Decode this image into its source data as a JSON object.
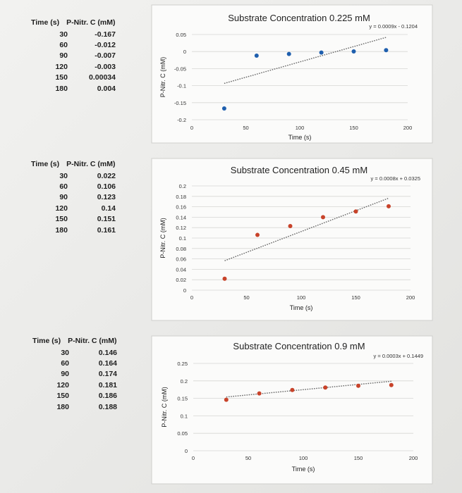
{
  "tables": [
    {
      "headers": [
        "Time (s)",
        "P-Nitr. C (mM)"
      ],
      "rows": [
        [
          "30",
          "-0.167"
        ],
        [
          "60",
          "-0.012"
        ],
        [
          "90",
          "-0.007"
        ],
        [
          "120",
          "-0.003"
        ],
        [
          "150",
          "0.00034"
        ],
        [
          "180",
          "0.004"
        ]
      ]
    },
    {
      "headers": [
        "Time (s)",
        "P-Nitr. C (mM)"
      ],
      "rows": [
        [
          "30",
          "0.022"
        ],
        [
          "60",
          "0.106"
        ],
        [
          "90",
          "0.123"
        ],
        [
          "120",
          "0.14"
        ],
        [
          "150",
          "0.151"
        ],
        [
          "180",
          "0.161"
        ]
      ]
    },
    {
      "headers": [
        "Time (s)",
        "P-Nitr. C (mM)"
      ],
      "rows": [
        [
          "30",
          "0.146"
        ],
        [
          "60",
          "0.164"
        ],
        [
          "90",
          "0.174"
        ],
        [
          "120",
          "0.181"
        ],
        [
          "150",
          "0.186"
        ],
        [
          "180",
          "0.188"
        ]
      ]
    }
  ],
  "chart_data": [
    {
      "type": "scatter",
      "title": "Substrate Concentration 0.225 mM",
      "xlabel": "Time (s)",
      "ylabel": "P-Nitr. C (mM)",
      "xlim": [
        0,
        200
      ],
      "ylim": [
        -0.2,
        0.05
      ],
      "xticks": [
        "0",
        "50",
        "100",
        "150",
        "200"
      ],
      "yticks": [
        "0.05",
        "0",
        "-0.05",
        "-0.1",
        "-0.15",
        "-0.2"
      ],
      "ytick_values": [
        0.05,
        0,
        -0.05,
        -0.1,
        -0.15,
        -0.2
      ],
      "x": [
        30,
        60,
        90,
        120,
        150,
        180
      ],
      "y": [
        -0.167,
        -0.012,
        -0.007,
        -0.003,
        0.00034,
        0.004
      ],
      "trendline": {
        "equation": "y = 0.0009x - 0.1204",
        "slope": 0.0009,
        "intercept": -0.1204
      },
      "color": "#1f5fae",
      "grid": true
    },
    {
      "type": "scatter",
      "title": "Substrate Concentration 0.45 mM",
      "xlabel": "Time (s)",
      "ylabel": "P-Nitr. C (mM)",
      "xlim": [
        0,
        200
      ],
      "ylim": [
        0,
        0.2
      ],
      "xticks": [
        "0",
        "50",
        "100",
        "150",
        "200"
      ],
      "yticks": [
        "0.2",
        "0.18",
        "0.16",
        "0.14",
        "0.12",
        "0.1",
        "0.08",
        "0.06",
        "0.04",
        "0.02",
        "0"
      ],
      "ytick_values": [
        0.2,
        0.18,
        0.16,
        0.14,
        0.12,
        0.1,
        0.08,
        0.06,
        0.04,
        0.02,
        0
      ],
      "x": [
        30,
        60,
        90,
        120,
        150,
        180
      ],
      "y": [
        0.022,
        0.106,
        0.123,
        0.14,
        0.151,
        0.161
      ],
      "trendline": {
        "equation": "y = 0.0008x + 0.0325",
        "slope": 0.0008,
        "intercept": 0.0325
      },
      "color": "#c8432a",
      "grid": true
    },
    {
      "type": "scatter",
      "title": "Substrate Concentration 0.9 mM",
      "xlabel": "Time (s)",
      "ylabel": "P-Nitr. C (mM)",
      "xlim": [
        0,
        200
      ],
      "ylim": [
        0,
        0.25
      ],
      "xticks": [
        "0",
        "50",
        "100",
        "150",
        "200"
      ],
      "yticks": [
        "0.25",
        "0.2",
        "0.15",
        "0.1",
        "0.05",
        "0"
      ],
      "ytick_values": [
        0.25,
        0.2,
        0.15,
        0.1,
        0.05,
        0
      ],
      "x": [
        30,
        60,
        90,
        120,
        150,
        180
      ],
      "y": [
        0.146,
        0.164,
        0.174,
        0.181,
        0.186,
        0.188
      ],
      "trendline": {
        "equation": "y = 0.0003x + 0.1449",
        "slope": 0.0003,
        "intercept": 0.1449
      },
      "color": "#c8432a",
      "grid": true
    }
  ]
}
